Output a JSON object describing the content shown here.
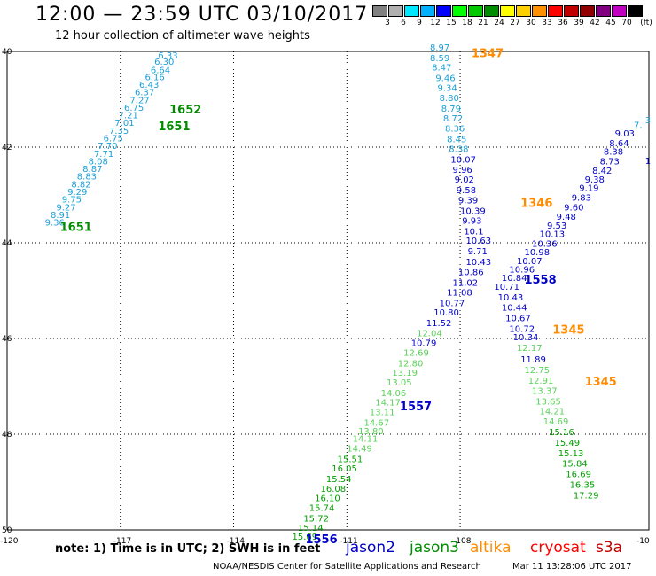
{
  "header": {
    "title": "12:00 — 23:59 UTC 03/10/2017",
    "subtitle": "12 hour collection of altimeter wave heights"
  },
  "legend": {
    "unit": "(ft)",
    "items": [
      {
        "label": "",
        "color": "#808080"
      },
      {
        "label": "3",
        "color": "#b0b0b0"
      },
      {
        "label": "6",
        "color": "#00e8ff"
      },
      {
        "label": "9",
        "color": "#00b0ff"
      },
      {
        "label": "12",
        "color": "#0000ff"
      },
      {
        "label": "15",
        "color": "#00ff00"
      },
      {
        "label": "18",
        "color": "#00c800"
      },
      {
        "label": "21",
        "color": "#008c00"
      },
      {
        "label": "24",
        "color": "#ffff00"
      },
      {
        "label": "27",
        "color": "#ffd000"
      },
      {
        "label": "30",
        "color": "#ff9000"
      },
      {
        "label": "33",
        "color": "#ff0000"
      },
      {
        "label": "36",
        "color": "#c00000"
      },
      {
        "label": "39",
        "color": "#900000"
      },
      {
        "label": "42",
        "color": "#800080"
      },
      {
        "label": "45",
        "color": "#c000c0"
      },
      {
        "label": "70",
        "color": "#000000"
      }
    ]
  },
  "axes": {
    "lat_labels": [
      "40",
      "42",
      "44",
      "46",
      "48",
      "50"
    ],
    "lon_labels": [
      "-120",
      "-117",
      "-114",
      "-111",
      "-108",
      "-10"
    ]
  },
  "tracks": [
    {
      "color": "#1aa0d8",
      "points": [
        [
          "6.33",
          -116.0,
          40.15
        ],
        [
          "6.30",
          -116.1,
          40.28
        ],
        [
          "6.64",
          -116.2,
          40.45
        ],
        [
          "6.16",
          -116.35,
          40.6
        ],
        [
          "6.43",
          -116.5,
          40.76
        ],
        [
          "6.37",
          -116.62,
          40.92
        ],
        [
          "7.27",
          -116.75,
          41.08
        ],
        [
          "6.75",
          -116.9,
          41.24
        ],
        [
          "7.21",
          -117.05,
          41.4
        ],
        [
          "7.01",
          -117.15,
          41.56
        ],
        [
          "7.35",
          -117.3,
          41.72
        ],
        [
          "6.75",
          -117.45,
          41.88
        ],
        [
          "7.70",
          -117.6,
          42.04
        ],
        [
          "7.71",
          -117.7,
          42.2
        ],
        [
          "8.08",
          -117.85,
          42.36
        ],
        [
          "8.87",
          -118.0,
          42.52
        ],
        [
          "8.83",
          -118.15,
          42.68
        ],
        [
          "8.82",
          -118.3,
          42.84
        ],
        [
          "9.29",
          -118.4,
          43.0
        ],
        [
          "9.75",
          -118.55,
          43.16
        ],
        [
          "9.27",
          -118.7,
          43.32
        ],
        [
          "8.91",
          -118.85,
          43.48
        ],
        [
          "9.36",
          -119.0,
          43.64
        ]
      ]
    },
    {
      "color": "#1aa0d8",
      "points": [
        [
          "8.97",
          -108.8,
          39.98
        ],
        [
          "8.59",
          -108.8,
          40.2
        ],
        [
          "8.47",
          -108.75,
          40.4
        ],
        [
          "9.46",
          -108.65,
          40.62
        ],
        [
          "9.34",
          -108.6,
          40.82
        ],
        [
          "8.80",
          -108.55,
          41.04
        ],
        [
          "8.79",
          -108.5,
          41.26
        ],
        [
          "8.72",
          -108.45,
          41.46
        ],
        [
          "8.36",
          -108.4,
          41.68
        ],
        [
          "8.45",
          -108.35,
          41.9
        ],
        [
          "8.38",
          -108.3,
          42.1
        ]
      ]
    },
    {
      "color": "#0000c8",
      "points": [
        [
          "10.07",
          -108.25,
          42.32
        ],
        [
          "9.96",
          -108.2,
          42.54
        ],
        [
          "9.02",
          -108.15,
          42.74
        ],
        [
          "9.58",
          -108.1,
          42.96
        ],
        [
          "9.39",
          -108.05,
          43.18
        ],
        [
          "10.39",
          -108.0,
          43.4
        ],
        [
          "9.93",
          -107.95,
          43.6
        ],
        [
          "10.1",
          -107.9,
          43.82
        ],
        [
          "10.63",
          -107.85,
          44.02
        ],
        [
          "9.71",
          -107.8,
          44.24
        ],
        [
          "10.43",
          -107.85,
          44.46
        ],
        [
          "10.86",
          -108.05,
          44.68
        ],
        [
          "11.02",
          -108.2,
          44.9
        ],
        [
          "11.08",
          -108.35,
          45.1
        ],
        [
          "10.77",
          -108.55,
          45.32
        ],
        [
          "10.80",
          -108.7,
          45.52
        ],
        [
          "11.52",
          -108.9,
          45.74
        ],
        [
          "10.79",
          -109.3,
          46.16
        ]
      ]
    },
    {
      "color": "#5ad25a",
      "points": [
        [
          "12.04",
          -109.15,
          45.95
        ],
        [
          "12.69",
          -109.5,
          46.36
        ],
        [
          "12.80",
          -109.65,
          46.58
        ],
        [
          "13.19",
          -109.8,
          46.78
        ],
        [
          "13.05",
          -109.95,
          46.98
        ],
        [
          "14.06",
          -110.1,
          47.2
        ],
        [
          "14.17",
          -110.25,
          47.4
        ],
        [
          "13.11",
          -110.4,
          47.6
        ],
        [
          "14.67",
          -110.55,
          47.82
        ],
        [
          "13.80",
          -110.7,
          48.0
        ],
        [
          "14.11",
          -110.85,
          48.16
        ],
        [
          "14.49",
          -111.0,
          48.36
        ]
      ]
    },
    {
      "color": "#00a000",
      "points": [
        [
          "15.51",
          -111.25,
          48.58
        ],
        [
          "16.05",
          -111.4,
          48.78
        ],
        [
          "15.54",
          -111.55,
          49.0
        ],
        [
          "16.08",
          -111.7,
          49.2
        ],
        [
          "16.10",
          -111.85,
          49.4
        ],
        [
          "15.74",
          -112.0,
          49.6
        ],
        [
          "15.72",
          -112.15,
          49.82
        ],
        [
          "15.14",
          -112.3,
          50.02
        ],
        [
          "15.69",
          -112.45,
          50.2
        ]
      ]
    },
    {
      "color": "#0000c8",
      "points": [
        [
          "9.03",
          -103.9,
          41.78
        ],
        [
          "8.64",
          -104.05,
          41.98
        ],
        [
          "8.38",
          -104.2,
          42.16
        ],
        [
          "8.73",
          -104.3,
          42.36
        ],
        [
          "8.42",
          -104.5,
          42.56
        ],
        [
          "9.38",
          -104.7,
          42.74
        ],
        [
          "9.19",
          -104.85,
          42.92
        ],
        [
          "9.83",
          -105.05,
          43.12
        ],
        [
          "9.60",
          -105.25,
          43.32
        ],
        [
          "9.48",
          -105.45,
          43.52
        ],
        [
          "9.53",
          -105.7,
          43.7
        ],
        [
          "10.13",
          -105.9,
          43.88
        ],
        [
          "10.36",
          -106.1,
          44.08
        ],
        [
          "10.98",
          -106.3,
          44.26
        ],
        [
          "10.07",
          -106.5,
          44.44
        ],
        [
          "10.96",
          -106.7,
          44.62
        ],
        [
          "10.84",
          -106.9,
          44.8
        ],
        [
          "10.71",
          -107.1,
          44.98
        ]
      ]
    },
    {
      "color": "#0000c8",
      "points": [
        [
          "10.43",
          -107.0,
          45.2
        ],
        [
          "10.44",
          -106.9,
          45.42
        ],
        [
          "10.67",
          -106.8,
          45.64
        ],
        [
          "10.72",
          -106.7,
          45.86
        ],
        [
          "10.34",
          -106.6,
          46.04
        ],
        [
          "11.89",
          -106.4,
          46.5
        ]
      ]
    },
    {
      "color": "#5ad25a",
      "points": [
        [
          "12.17",
          -106.5,
          46.26
        ],
        [
          "12.75",
          -106.3,
          46.72
        ],
        [
          "12.91",
          -106.2,
          46.94
        ],
        [
          "13.37",
          -106.1,
          47.16
        ],
        [
          "13.65",
          -106.0,
          47.38
        ],
        [
          "14.21",
          -105.9,
          47.58
        ],
        [
          "14.69",
          -105.8,
          47.8
        ]
      ]
    },
    {
      "color": "#00a000",
      "points": [
        [
          "15.16",
          -105.65,
          48.02
        ],
        [
          "15.49",
          -105.5,
          48.24
        ],
        [
          "15.13",
          -105.4,
          48.46
        ],
        [
          "15.84",
          -105.3,
          48.68
        ],
        [
          "16.69",
          -105.2,
          48.9
        ],
        [
          "16.35",
          -105.1,
          49.12
        ],
        [
          "17.29",
          -105.0,
          49.34
        ]
      ]
    }
  ],
  "time_labels": [
    {
      "text": "1347",
      "lon": -107.7,
      "lat": 40.12,
      "color": "#ff8c00"
    },
    {
      "text": "1652",
      "lon": -115.7,
      "lat": 41.3,
      "color": "#008c00"
    },
    {
      "text": "1651",
      "lon": -116.0,
      "lat": 41.65,
      "color": "#008c00"
    },
    {
      "text": "1651",
      "lon": -118.6,
      "lat": 43.75,
      "color": "#008c00"
    },
    {
      "text": "1346",
      "lon": -106.4,
      "lat": 43.25,
      "color": "#ff8c00"
    },
    {
      "text": "1558",
      "lon": -106.3,
      "lat": 44.85,
      "color": "#0000c8"
    },
    {
      "text": "1345",
      "lon": -105.55,
      "lat": 45.9,
      "color": "#ff8c00"
    },
    {
      "text": "1345",
      "lon": -104.7,
      "lat": 46.98,
      "color": "#ff8c00"
    },
    {
      "text": "1557",
      "lon": -109.6,
      "lat": 47.5,
      "color": "#0000c8"
    },
    {
      "text": "1556",
      "lon": -112.1,
      "lat": 50.28,
      "color": "#0000c8"
    }
  ],
  "edge_labels": [
    {
      "text": "3",
      "lon": -103.1,
      "lat": 41.5,
      "color": "#1aa0d8"
    },
    {
      "text": "7.",
      "lon": -103.4,
      "lat": 41.6,
      "color": "#1aa0d8"
    },
    {
      "text": "1",
      "lon": -103.1,
      "lat": 42.35,
      "color": "#0000c8"
    }
  ],
  "note": "note: 1) Time is in UTC; 2) SWH is in feet",
  "satellites": [
    {
      "name": "jason2",
      "color": "#0000c8"
    },
    {
      "name": "jason3",
      "color": "#008c00"
    },
    {
      "name": "altika",
      "color": "#ff8c00"
    },
    {
      "name": "cryosat",
      "color": "#ff0000"
    },
    {
      "name": "s3a",
      "color": "#c00000"
    }
  ],
  "footer": {
    "credit": "NOAA/NESDIS Center for Satellite Applications and Research",
    "timestamp": "Mar 11 13:28:06 UTC 2017"
  }
}
